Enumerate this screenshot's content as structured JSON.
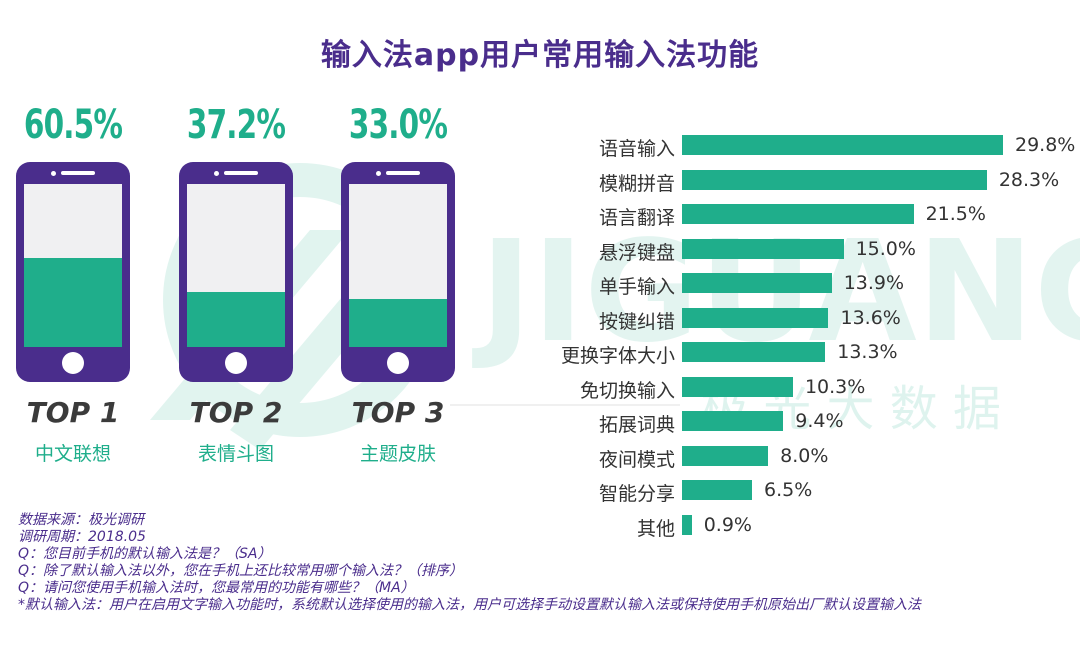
{
  "title": "输入法app用户常用输入法功能",
  "watermark": {
    "brand": "JIGUANG",
    "cn": "极 光 大 数 据"
  },
  "top3": [
    {
      "pct": "60.5%",
      "value": 60.5,
      "rank": "TOP 1",
      "feature": "中文联想"
    },
    {
      "pct": "37.2%",
      "value": 37.2,
      "rank": "TOP 2",
      "feature": "表情斗图"
    },
    {
      "pct": "33.0%",
      "value": 33.0,
      "rank": "TOP 3",
      "feature": "主题皮肤"
    }
  ],
  "chart_data": {
    "type": "bar",
    "orientation": "horizontal",
    "title": "输入法app用户常用输入法功能",
    "categories": [
      "语音输入",
      "模糊拼音",
      "语言翻译",
      "悬浮键盘",
      "单手输入",
      "按键纠错",
      "更换字体大小",
      "免切换输入",
      "拓展词典",
      "夜间模式",
      "智能分享",
      "其他"
    ],
    "values": [
      29.8,
      28.3,
      21.5,
      15.0,
      13.9,
      13.6,
      13.3,
      10.3,
      9.4,
      8.0,
      6.5,
      0.9
    ],
    "value_labels": [
      "29.8%",
      "28.3%",
      "21.5%",
      "15.0%",
      "13.9%",
      "13.6%",
      "13.3%",
      "10.3%",
      "9.4%",
      "8.0%",
      "6.5%",
      "0.9%"
    ],
    "bar_color": "#1fae8b",
    "grid": false
  },
  "notes": [
    "数据来源：极光调研",
    "调研周期：2018.05",
    "Q：您目前手机的默认输入法是？（SA）",
    "Q：除了默认输入法以外，您在手机上还比较常用哪个输入法？（排序）",
    "Q：请问您使用手机输入法时，您最常用的功能有哪些？（MA）",
    "*默认输入法：用户在启用文字输入功能时，系统默认选择使用的输入法，用户可选择手动设置默认输入法或保持使用手机原始出厂默认设置输入法"
  ],
  "colors": {
    "accent": "#1fae8b",
    "brand": "#4a2d8c"
  }
}
